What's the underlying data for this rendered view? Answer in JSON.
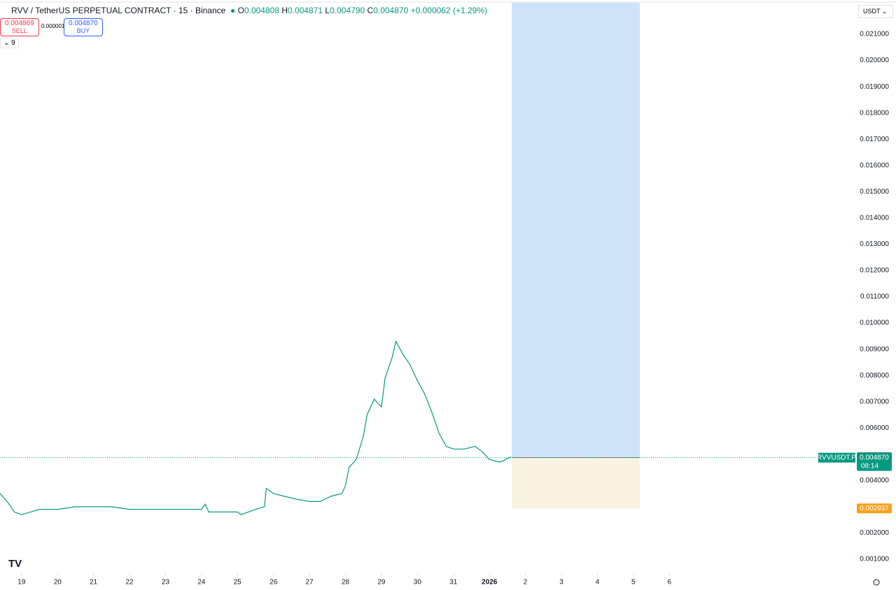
{
  "header": {
    "symbol": "RVV / TetherUS PERPETUAL CONTRACT · 15 · Binance",
    "open": "0.004808",
    "high": "0.004871",
    "low": "0.004790",
    "close": "0.004870",
    "change": "+0.000062",
    "change_pct": "(+1.29%)"
  },
  "trade": {
    "sell_price": "0.004869",
    "sell": "SELL",
    "spread": "0.000001",
    "buy_price": "0.004870",
    "buy": "BUY"
  },
  "indicators_count": "9",
  "currency": "USDT",
  "chart_data": {
    "type": "line",
    "series": [
      {
        "name": "RVVUSDT.P",
        "color": "#089981",
        "x": [
          18.4,
          18.6,
          18.8,
          19.0,
          19.25,
          19.5,
          19.75,
          20,
          20.5,
          21,
          21.5,
          22,
          22.5,
          23,
          23.5,
          24,
          24.1,
          24.2,
          24.5,
          25,
          25.1,
          25.5,
          25.75,
          25.8,
          26,
          26.3,
          26.6,
          27,
          27.3,
          27.6,
          27.9,
          28,
          28.1,
          28.3,
          28.5,
          28.6,
          28.8,
          29,
          29.1,
          29.3,
          29.4,
          29.6,
          29.8,
          30,
          30.2,
          30.4,
          30.6,
          30.8,
          31,
          31.3,
          31.6,
          31.8,
          32,
          32.3,
          32.6
        ],
        "values": [
          0.0035,
          0.0032,
          0.0028,
          0.0027,
          0.0028,
          0.0029,
          0.0029,
          0.0029,
          0.003,
          0.003,
          0.003,
          0.0029,
          0.0029,
          0.0029,
          0.0029,
          0.0029,
          0.0031,
          0.0028,
          0.0028,
          0.0028,
          0.0027,
          0.0029,
          0.003,
          0.0037,
          0.0035,
          0.0034,
          0.0033,
          0.0032,
          0.0032,
          0.0034,
          0.0035,
          0.0038,
          0.0045,
          0.0048,
          0.0057,
          0.0065,
          0.0071,
          0.0068,
          0.0079,
          0.0087,
          0.0093,
          0.0088,
          0.0084,
          0.0078,
          0.0073,
          0.0066,
          0.0058,
          0.0053,
          0.0052,
          0.0052,
          0.0053,
          0.0051,
          0.0048,
          0.0047,
          0.0049
        ]
      }
    ],
    "xlim": [
      18.4,
      42.17
    ],
    "xticks": [
      19,
      20,
      21,
      22,
      23,
      24,
      25,
      26,
      27,
      28,
      29,
      30,
      31,
      {
        "value": 32,
        "label": "2026"
      },
      {
        "value": 33,
        "label": "2"
      },
      {
        "value": 34,
        "label": "3"
      },
      {
        "value": 35,
        "label": "4"
      },
      {
        "value": 36,
        "label": "5"
      },
      {
        "value": 37,
        "label": "6"
      }
    ],
    "ylim": [
      0.000467,
      0.0222
    ],
    "yticks": [
      {
        "value": 0.001,
        "label": "0.001000"
      },
      {
        "value": 0.002,
        "label": "0.002000"
      },
      {
        "value": 0.004,
        "label": "0.004000"
      },
      {
        "value": 0.006,
        "label": "0.006000"
      },
      {
        "value": 0.007,
        "label": "0.007000"
      },
      {
        "value": 0.008,
        "label": "0.008000"
      },
      {
        "value": 0.009,
        "label": "0.009000"
      },
      {
        "value": 0.01,
        "label": "0.010000"
      },
      {
        "value": 0.011,
        "label": "0.011000"
      },
      {
        "value": 0.012,
        "label": "0.012000"
      },
      {
        "value": 0.013,
        "label": "0.013000"
      },
      {
        "value": 0.014,
        "label": "0.014000"
      },
      {
        "value": 0.015,
        "label": "0.015000"
      },
      {
        "value": 0.016,
        "label": "0.016000"
      },
      {
        "value": 0.017,
        "label": "0.017000"
      },
      {
        "value": 0.018,
        "label": "0.018000"
      },
      {
        "value": 0.019,
        "label": "0.019000"
      },
      {
        "value": 0.02,
        "label": "0.020000"
      },
      {
        "value": 0.021,
        "label": "0.021000"
      }
    ],
    "price_line": {
      "value": 0.00487,
      "label": "0.004870",
      "timer": "08:14"
    },
    "crosshair_price": 0.004885,
    "position": {
      "x_start": 32.62,
      "x_end": 36.18,
      "entry": 0.00487,
      "target": 0.0222,
      "stop": 0.002937
    }
  }
}
